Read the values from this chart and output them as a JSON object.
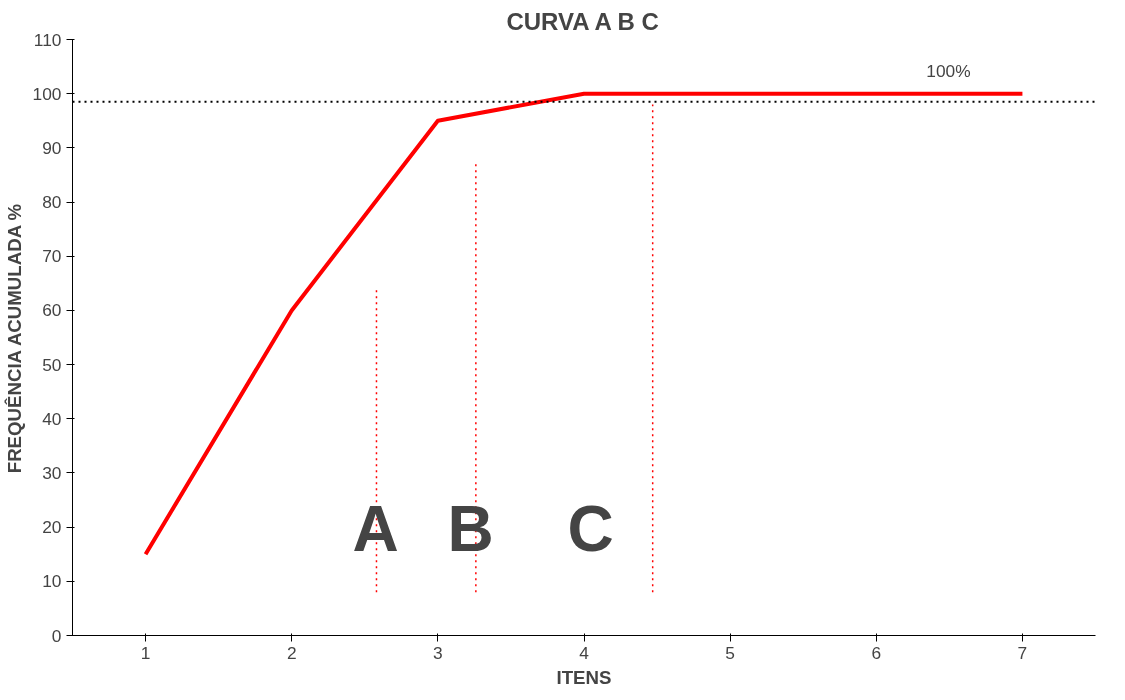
{
  "chart_data": {
    "type": "line",
    "title": "CURVA A B C",
    "xlabel": "ITENS",
    "ylabel": "FREQUÊNCIA ACUMULADA %",
    "x": [
      1,
      2,
      3,
      4,
      5,
      6,
      7
    ],
    "series": [
      {
        "color": "#ff0000",
        "values": [
          15,
          60,
          95,
          100,
          100,
          100,
          100
        ]
      },
      {
        "color": "#ff0000",
        "x": [
          2.58,
          2.58
        ],
        "values": [
          8,
          64
        ],
        "line_style": "dotted"
      },
      {
        "color": "#ff0000",
        "x": [
          3.26,
          3.26
        ],
        "values": [
          8,
          87
        ],
        "line_style": "dotted"
      },
      {
        "color": "#ff0000",
        "x": [
          4.47,
          4.47
        ],
        "values": [
          8,
          98
        ],
        "line_style": "dotted"
      }
    ],
    "xlim": [
      0.5,
      7.5
    ],
    "xticks": [
      1,
      2,
      3,
      4,
      5,
      6,
      7
    ],
    "ylim": [
      0,
      110
    ],
    "yticks": [
      0,
      10,
      20,
      30,
      40,
      50,
      60,
      70,
      80,
      90,
      100,
      110
    ],
    "ref_lines": [
      {
        "axis": "y",
        "value": 98.5,
        "color": "#000000",
        "line_style": "dotted"
      }
    ],
    "annotations": [
      "100%",
      "A",
      "B",
      "C"
    ],
    "grid": false,
    "marker": "none",
    "line_style": "solid"
  }
}
